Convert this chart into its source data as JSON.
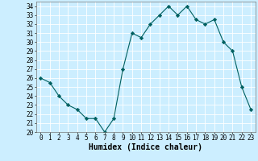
{
  "x": [
    0,
    1,
    2,
    3,
    4,
    5,
    6,
    7,
    8,
    9,
    10,
    11,
    12,
    13,
    14,
    15,
    16,
    17,
    18,
    19,
    20,
    21,
    22,
    23
  ],
  "y": [
    26,
    25.5,
    24,
    23,
    22.5,
    21.5,
    21.5,
    20,
    21.5,
    27,
    31,
    30.5,
    32,
    33,
    34,
    33,
    34,
    32.5,
    32,
    32.5,
    30,
    29,
    25,
    22.5
  ],
  "line_color": "#006060",
  "marker": "D",
  "marker_size": 2.2,
  "bg_color": "#cceeff",
  "grid_color": "#ffffff",
  "xlabel": "Humidex (Indice chaleur)",
  "xlim": [
    -0.5,
    23.5
  ],
  "ylim": [
    20,
    34.5
  ],
  "yticks": [
    20,
    21,
    22,
    23,
    24,
    25,
    26,
    27,
    28,
    29,
    30,
    31,
    32,
    33,
    34
  ],
  "xticks": [
    0,
    1,
    2,
    3,
    4,
    5,
    6,
    7,
    8,
    9,
    10,
    11,
    12,
    13,
    14,
    15,
    16,
    17,
    18,
    19,
    20,
    21,
    22,
    23
  ],
  "xlabel_fontsize": 7,
  "tick_fontsize": 5.5
}
